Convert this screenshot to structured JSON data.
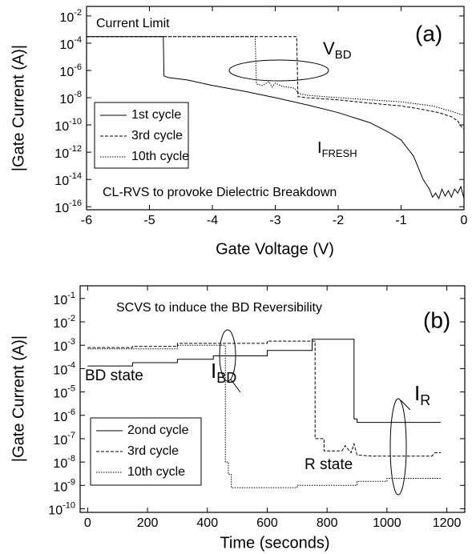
{
  "chart_data": [
    {
      "type": "line",
      "log_y": true,
      "xlabel": "Gate Voltage (V)",
      "ylabel": "|Gate Current (A)|",
      "xlim": [
        -6,
        0
      ],
      "xticks": [
        -6,
        -5,
        -4,
        -3,
        -2,
        -1,
        0
      ],
      "ylim": [
        6e-17,
        0.05
      ],
      "yticks": [
        {
          "value": 0.01,
          "label": "10",
          "exponent": "-2"
        },
        {
          "value": 0.0001,
          "label": "10",
          "exponent": "-4"
        },
        {
          "value": 1e-06,
          "label": "10",
          "exponent": "-6"
        },
        {
          "value": 1e-08,
          "label": "10",
          "exponent": "-8"
        },
        {
          "value": 1e-10,
          "label": "10",
          "exponent": "-10"
        },
        {
          "value": 1e-12,
          "label": "10",
          "exponent": "-12"
        },
        {
          "value": 1e-14,
          "label": "10",
          "exponent": "-14"
        },
        {
          "value": 1e-16,
          "label": "10",
          "exponent": "-16"
        }
      ],
      "annotations": [
        {
          "text": "Current Limit"
        },
        {
          "text": "(a)"
        },
        {
          "text": "V",
          "sub": "BD"
        },
        {
          "text": "I",
          "sub": "FRESH"
        },
        {
          "text": "CL-RVS to provoke Dielectric Breakdown"
        }
      ],
      "series": [
        {
          "name": "1st cycle",
          "color": "#000000",
          "dash": "solid",
          "x": [
            -6,
            -4.78,
            -4.77,
            -4.7,
            -4.4,
            -4,
            -3.5,
            -3,
            -2.5,
            -2,
            -1.5,
            -1.2,
            -1,
            -0.8,
            -0.65,
            -0.55,
            -0.5,
            -0.45,
            -0.4,
            -0.35,
            -0.3,
            -0.25,
            -0.2,
            -0.15,
            -0.1,
            -0.05,
            0
          ],
          "values": [
            0.0003,
            0.0003,
            4e-07,
            3e-07,
            2e-07,
            8e-08,
            3e-08,
            1e-08,
            3e-09,
            8e-10,
            1.5e-10,
            3e-11,
            8e-12,
            5e-13,
            1e-14,
            2e-15,
            5e-16,
            1e-15,
            4e-16,
            2e-15,
            6e-16,
            1.5e-15,
            5e-16,
            2e-15,
            1e-15,
            3e-15,
            4e-16
          ]
        },
        {
          "name": "3rd cycle",
          "color": "#000000",
          "dash": "dashed",
          "x": [
            -6,
            -2.66,
            -2.64,
            -2.5,
            -2,
            -1.5,
            -1,
            -0.7,
            -0.4,
            -0.2,
            -0.1,
            -0.05,
            0
          ],
          "values": [
            0.0003,
            0.0003,
            1.2e-08,
            1e-08,
            7e-09,
            4e-09,
            2.5e-09,
            1.5e-09,
            8e-10,
            4e-10,
            2e-10,
            8e-11,
            5e-11
          ]
        },
        {
          "name": "10th cycle",
          "color": "#000000",
          "dash": "dotted",
          "x": [
            -6,
            -3.32,
            -3.3,
            -3.2,
            -3.1,
            -3.05,
            -3,
            -2.9,
            -2.8,
            -2.7,
            -2.62,
            -2.5,
            -2,
            -1.5,
            -1,
            -0.5,
            -0.2,
            0
          ],
          "values": [
            0.0003,
            0.0003,
            1e-07,
            8e-08,
            1.5e-07,
            6e-08,
            1.2e-07,
            7e-08,
            6e-08,
            5e-08,
            2e-08,
            1.5e-08,
            1e-08,
            7e-09,
            5e-09,
            2.5e-09,
            1e-09,
            5e-10
          ]
        }
      ]
    },
    {
      "type": "line",
      "log_y": true,
      "xlabel": "Time (seconds)",
      "ylabel": "|Gate Current (A)|",
      "xlim": [
        -25,
        1260
      ],
      "xticks": [
        0,
        200,
        400,
        600,
        800,
        1000,
        1200
      ],
      "ylim": [
        7e-11,
        0.35
      ],
      "yticks": [
        {
          "value": 0.1,
          "label": "10",
          "exponent": "-1"
        },
        {
          "value": 0.01,
          "label": "10",
          "exponent": "-2"
        },
        {
          "value": 0.001,
          "label": "10",
          "exponent": "-3"
        },
        {
          "value": 0.0001,
          "label": "10",
          "exponent": "-4"
        },
        {
          "value": 1e-05,
          "label": "10",
          "exponent": "-5"
        },
        {
          "value": 1e-06,
          "label": "10",
          "exponent": "-6"
        },
        {
          "value": 1e-07,
          "label": "10",
          "exponent": "-7"
        },
        {
          "value": 1e-08,
          "label": "10",
          "exponent": "-8"
        },
        {
          "value": 1e-09,
          "label": "10",
          "exponent": "-9"
        },
        {
          "value": 1e-10,
          "label": "10",
          "exponent": "-10"
        }
      ],
      "annotations": [
        {
          "text": "SCVS to induce the BD Reversibility"
        },
        {
          "text": "(b)"
        },
        {
          "text": "BD state"
        },
        {
          "text": "I",
          "sub": "BD"
        },
        {
          "text": "I",
          "sub": "R"
        },
        {
          "text": "R state"
        }
      ],
      "series": [
        {
          "name": "2ond cycle",
          "color": "#000000",
          "dash": "solid",
          "x": [
            0,
            150,
            150,
            300,
            300,
            420,
            420,
            600,
            600,
            750,
            750,
            890,
            890,
            900,
            900,
            1180
          ],
          "values": [
            0.00013,
            0.00013,
            0.00018,
            0.00018,
            0.00025,
            0.00025,
            0.00035,
            0.00035,
            0.0006,
            0.0006,
            0.0018,
            0.0018,
            7e-07,
            7e-07,
            5e-07,
            5e-07
          ]
        },
        {
          "name": "3rd cycle",
          "color": "#000000",
          "dash": "dashed",
          "x": [
            0,
            150,
            150,
            300,
            300,
            600,
            600,
            760,
            760,
            790,
            790,
            850,
            860,
            880,
            890,
            900,
            950,
            1000,
            1100,
            1150,
            1160,
            1180
          ],
          "values": [
            0.0008,
            0.0008,
            0.0009,
            0.0009,
            0.0012,
            0.0012,
            0.0015,
            0.0015,
            1e-07,
            1e-07,
            3e-08,
            3e-08,
            5e-08,
            2.5e-08,
            6e-08,
            2e-08,
            1.8e-08,
            1.8e-08,
            1.8e-08,
            1.8e-08,
            2.5e-08,
            2.5e-08
          ]
        },
        {
          "name": "10th cycle",
          "color": "#000000",
          "dash": "dotted",
          "x": [
            0,
            300,
            300,
            460,
            460,
            470,
            470,
            480,
            480,
            700,
            700,
            900,
            900,
            1000,
            1000,
            1180
          ],
          "values": [
            0.0007,
            0.0007,
            0.001,
            0.001,
            1e-08,
            1e-08,
            3e-09,
            3e-09,
            8e-10,
            8e-10,
            1e-09,
            1e-09,
            1.5e-09,
            1.5e-09,
            2e-09,
            2e-09
          ]
        }
      ]
    }
  ]
}
